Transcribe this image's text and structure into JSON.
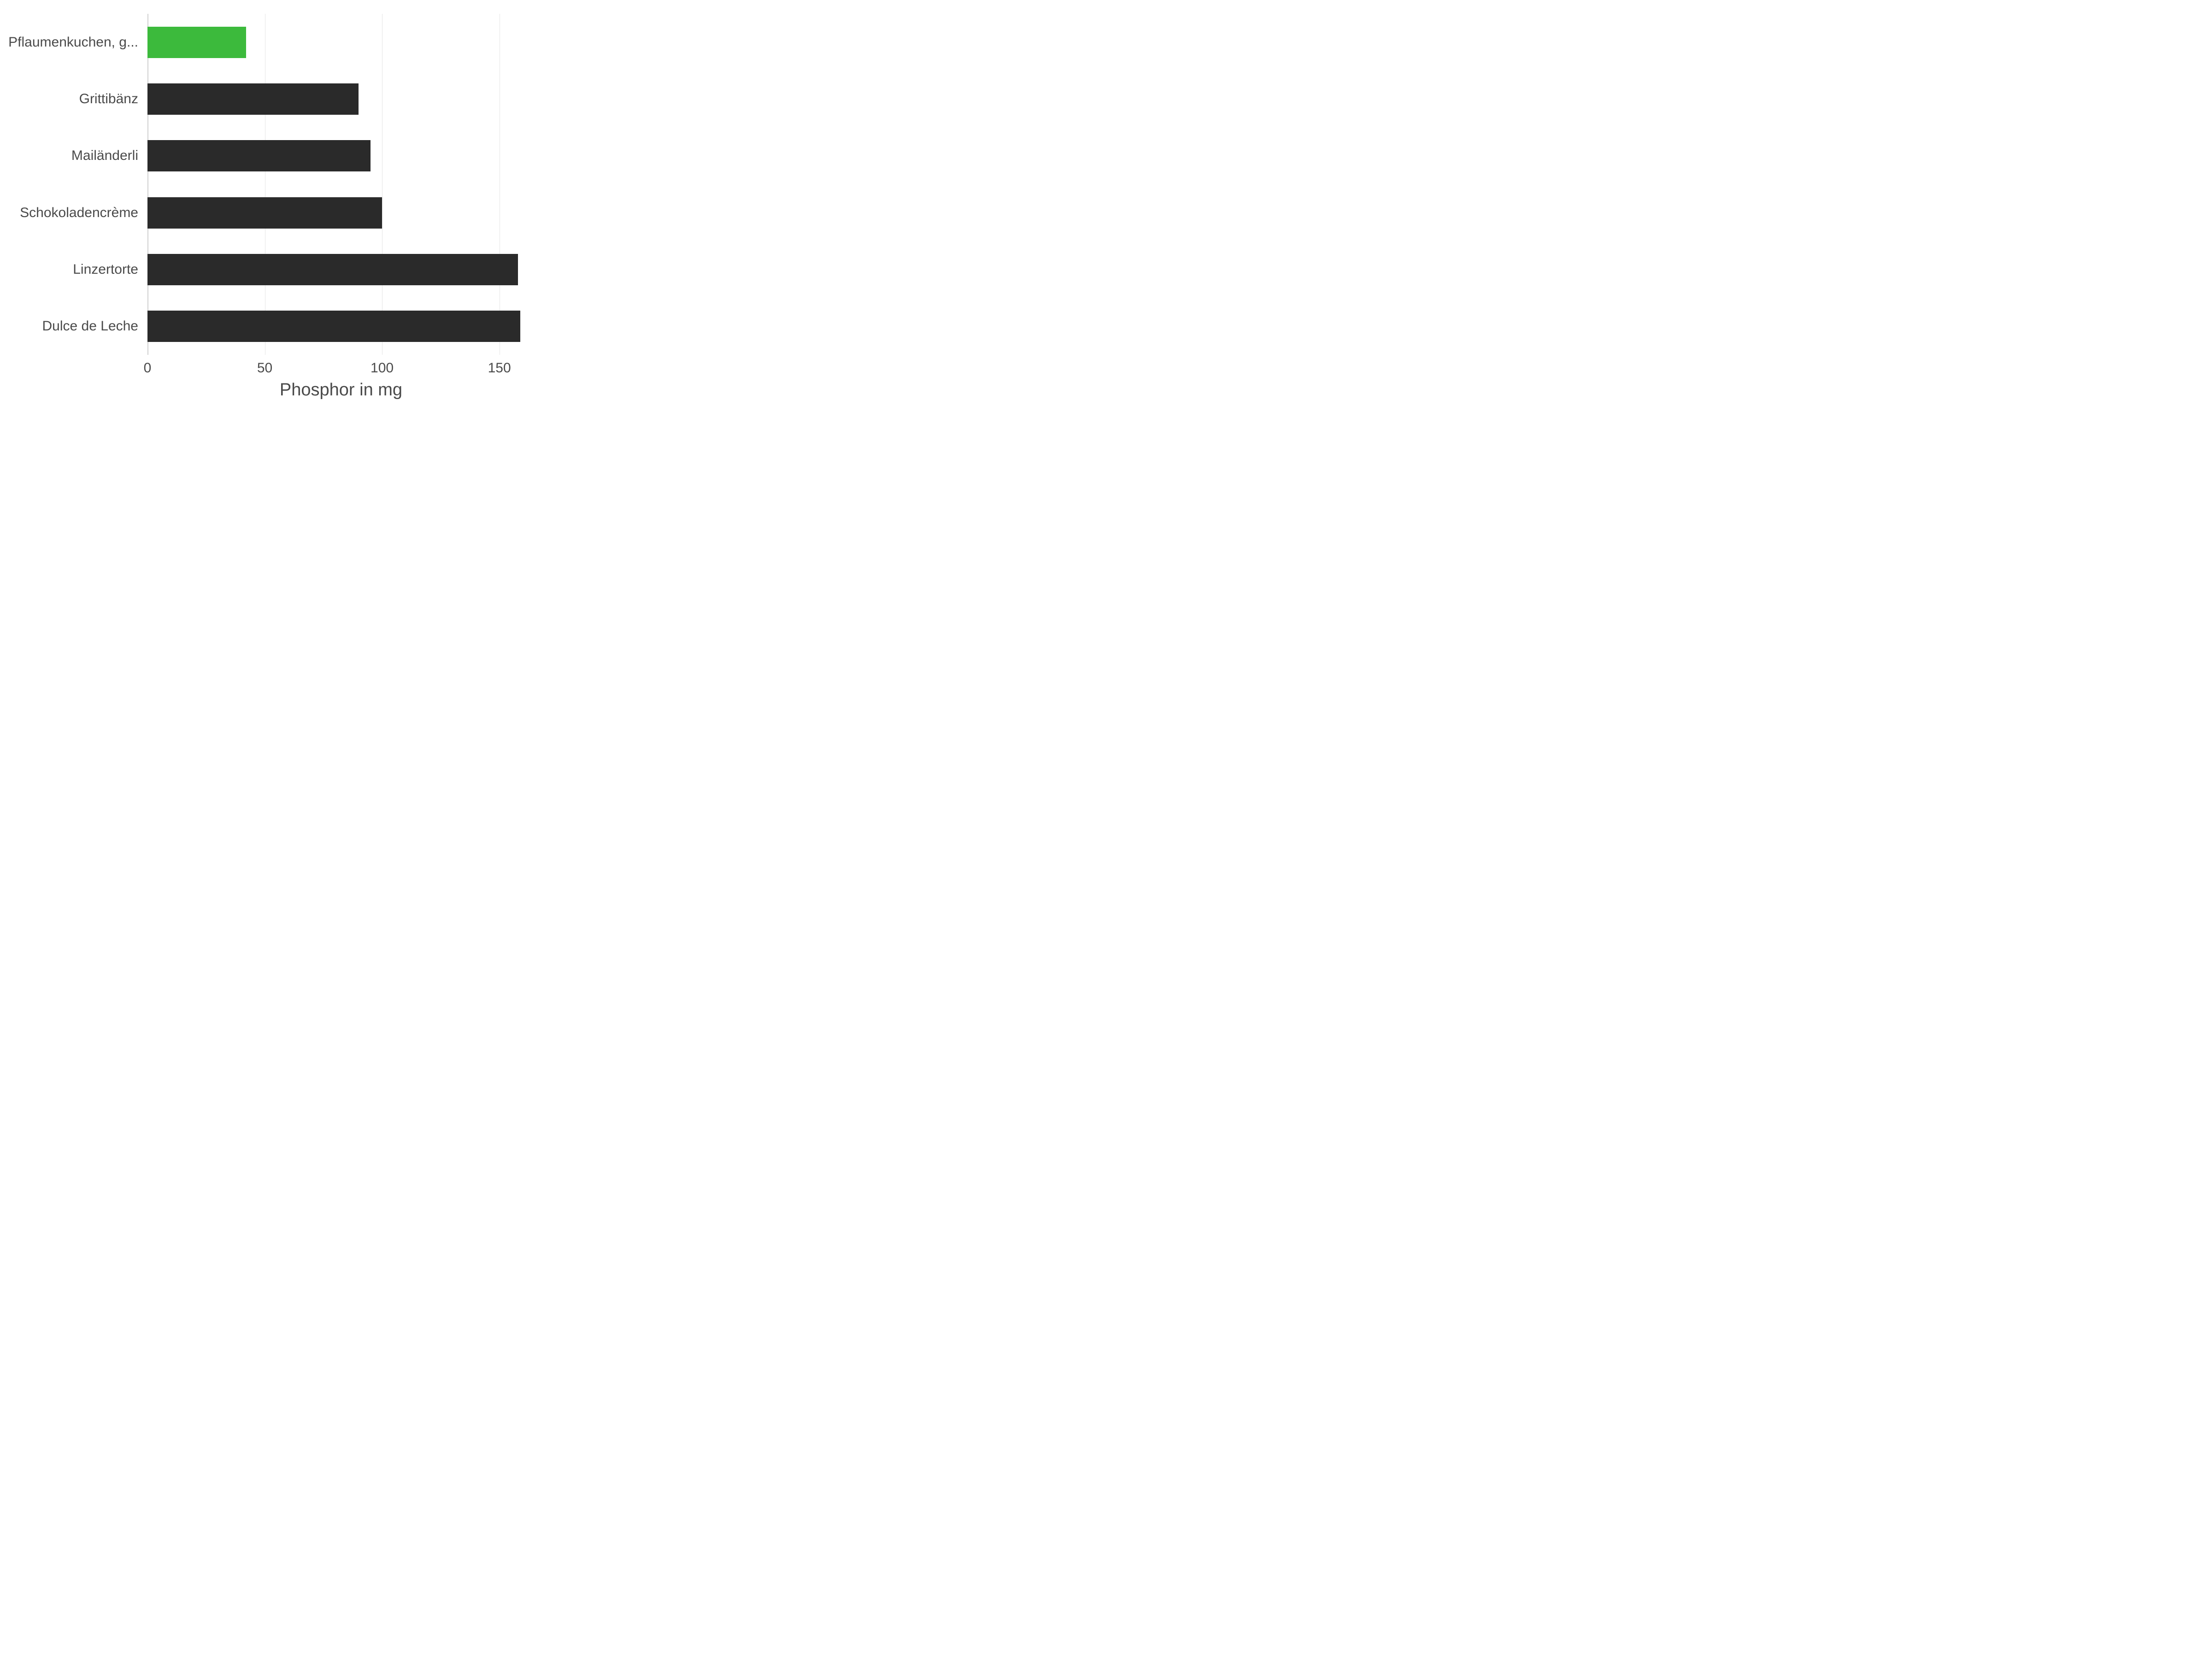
{
  "chart": {
    "type": "bar-horizontal",
    "x_axis_title": "Phosphor in mg",
    "xlim": [
      0,
      165
    ],
    "xticks": [
      0,
      50,
      100,
      150
    ],
    "xtick_labels": [
      "0",
      "50",
      "100",
      "150"
    ],
    "background_color": "#ffffff",
    "grid_color": "#e5e5e5",
    "axis_line_color": "#d0d0d0",
    "label_color": "#4a4a4a",
    "label_fontsize": 30,
    "title_fontsize": 38,
    "bar_height_ratio": 0.55,
    "categories": [
      {
        "label": "Pflaumenkuchen, g...",
        "value": 42,
        "color": "#3cba3c"
      },
      {
        "label": "Grittibänz",
        "value": 90,
        "color": "#2a2a2a"
      },
      {
        "label": "Mailänderli",
        "value": 95,
        "color": "#2a2a2a"
      },
      {
        "label": "Schokoladencrème",
        "value": 100,
        "color": "#2a2a2a"
      },
      {
        "label": "Linzertorte",
        "value": 158,
        "color": "#2a2a2a"
      },
      {
        "label": "Dulce de Leche",
        "value": 159,
        "color": "#2a2a2a"
      }
    ]
  }
}
